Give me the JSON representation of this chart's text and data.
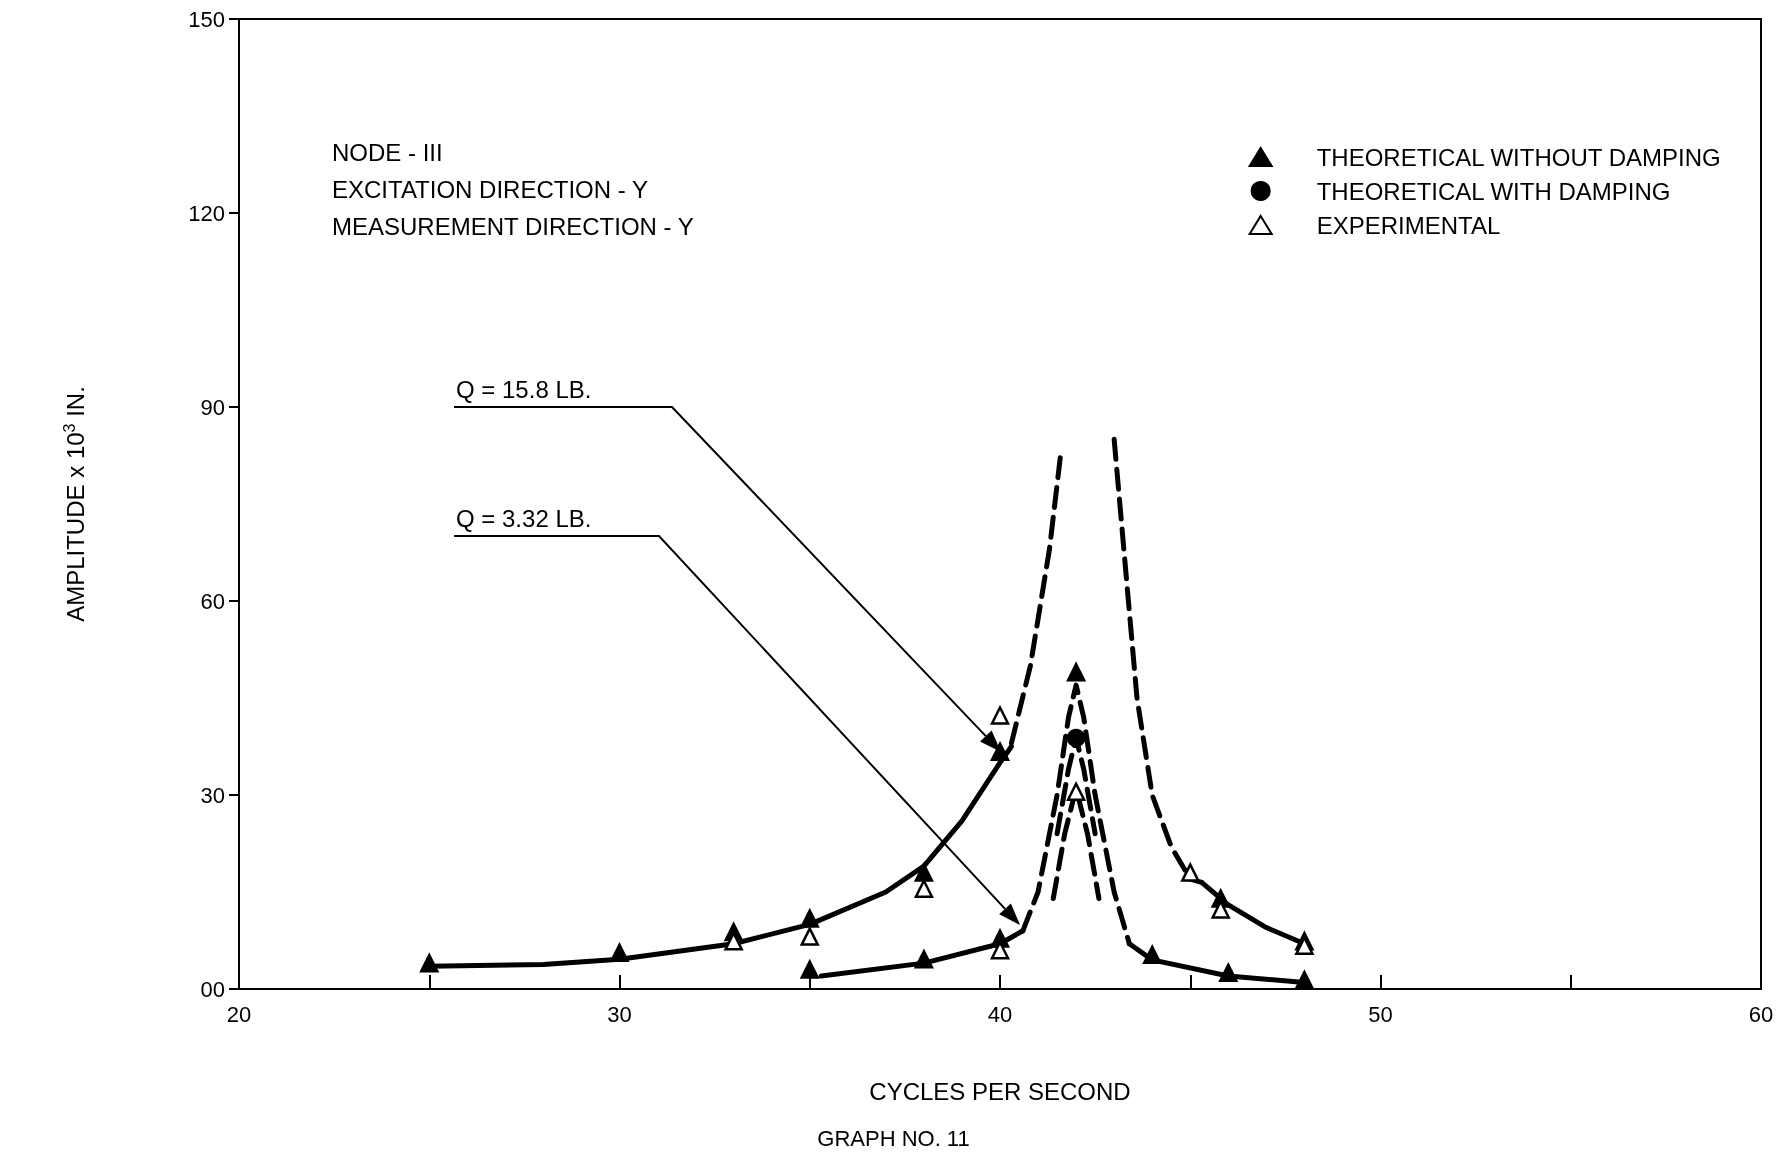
{
  "chart_data": {
    "type": "scatter",
    "xlabel": "CYCLES PER SECOND",
    "ylabel": "AMPLITUDE x 10$^{3}$ IN.",
    "annotations": [
      "NODE - III",
      "EXCITATION DIRECTION - Y",
      "MEASUREMENT DIRECTION - Y",
      "Q = 15.8 LB.",
      "Q = 3.32 LB.",
      "GRAPH NO. 11"
    ],
    "xlim": [
      20,
      60
    ],
    "xticks": [
      20,
      {
        "value": 25,
        "label": null
      },
      30,
      {
        "value": 35,
        "label": null
      },
      40,
      {
        "value": 45,
        "label": null
      },
      50,
      {
        "value": 55,
        "label": null
      },
      60
    ],
    "ylim": [
      0,
      150
    ],
    "yticks": [
      {
        "value": 0,
        "label": "00"
      },
      30,
      60,
      90,
      120,
      150
    ],
    "grid": false,
    "legend": "top right",
    "series": [
      {
        "type": "line",
        "marker": "none",
        "line_style": "solid",
        "color": "#000000",
        "x": [
          25,
          28,
          30,
          33,
          35,
          37,
          38,
          39,
          40,
          40.3
        ],
        "values": [
          3.5,
          3.8,
          4.6,
          7,
          10,
          15,
          19,
          26,
          35,
          37.5
        ]
      },
      {
        "type": "line",
        "marker": "none",
        "line_style": "dashed",
        "color": "#000000",
        "x": [
          40.3,
          40.8,
          41.3,
          41.6
        ],
        "values": [
          38,
          50,
          68,
          83
        ]
      },
      {
        "type": "line",
        "marker": "none",
        "line_style": "dashed",
        "color": "#000000",
        "x": [
          43.0,
          43.3,
          43.6,
          44,
          44.5,
          45,
          45.3
        ],
        "values": [
          85,
          65,
          45,
          30,
          22,
          17,
          16.5
        ]
      },
      {
        "type": "line",
        "marker": "none",
        "line_style": "solid",
        "color": "#000000",
        "x": [
          45.3,
          46,
          47,
          48
        ],
        "values": [
          16.5,
          13,
          9.5,
          7
        ]
      },
      {
        "type": "line",
        "marker": "none",
        "line_style": "solid",
        "color": "#000000",
        "x": [
          35.3,
          38,
          40,
          40.6
        ],
        "values": [
          2,
          4,
          7,
          9
        ]
      },
      {
        "type": "line",
        "marker": "none",
        "line_style": "dashed",
        "color": "#000000",
        "x": [
          40.6,
          41,
          41.5,
          41.8,
          42,
          42.2,
          42.5,
          43,
          43.4
        ],
        "values": [
          9,
          15,
          30,
          42,
          47,
          42,
          30,
          15,
          7
        ]
      },
      {
        "type": "line",
        "marker": "none",
        "line_style": "dashed",
        "color": "#000000",
        "x": [
          41.5,
          41.8,
          42,
          42.2,
          42.5
        ],
        "values": [
          24,
          34,
          38.8,
          34,
          24
        ]
      },
      {
        "type": "line",
        "marker": "none",
        "line_style": "dashed",
        "color": "#000000",
        "x": [
          41.4,
          41.7,
          42,
          42.3,
          42.6
        ],
        "values": [
          14,
          24,
          31,
          24,
          14
        ]
      },
      {
        "type": "line",
        "marker": "none",
        "line_style": "solid",
        "color": "#000000",
        "x": [
          43.4,
          44,
          46,
          48
        ],
        "values": [
          7,
          4.5,
          2,
          1
        ]
      },
      {
        "type": "scatter",
        "name": "THEORETICAL WITHOUT DAMPING",
        "marker": "triangle",
        "color": "#000000",
        "x": [
          25,
          30,
          33,
          35,
          38,
          40,
          45.8,
          48,
          35,
          38,
          40,
          42,
          44,
          46,
          48
        ],
        "values": [
          4,
          5.6,
          8.8,
          10.9,
          18,
          36.7,
          14,
          7.4,
          3,
          4.6,
          7.8,
          49,
          5.3,
          2.5,
          1.4
        ]
      },
      {
        "type": "scatter",
        "name": "THEORETICAL WITH DAMPING",
        "marker": "circle",
        "color": "#000000",
        "x": [
          42
        ],
        "values": [
          38.8
        ]
      },
      {
        "type": "scatter",
        "name": "EXPERIMENTAL",
        "marker": "triangle",
        "color": "#ffffff",
        "x": [
          33,
          35,
          38,
          40,
          40,
          42,
          45,
          45.8,
          48
        ],
        "values": [
          7.4,
          8.1,
          15.5,
          42.3,
          6,
          30.5,
          18,
          12.3,
          6.7
        ]
      }
    ]
  }
}
